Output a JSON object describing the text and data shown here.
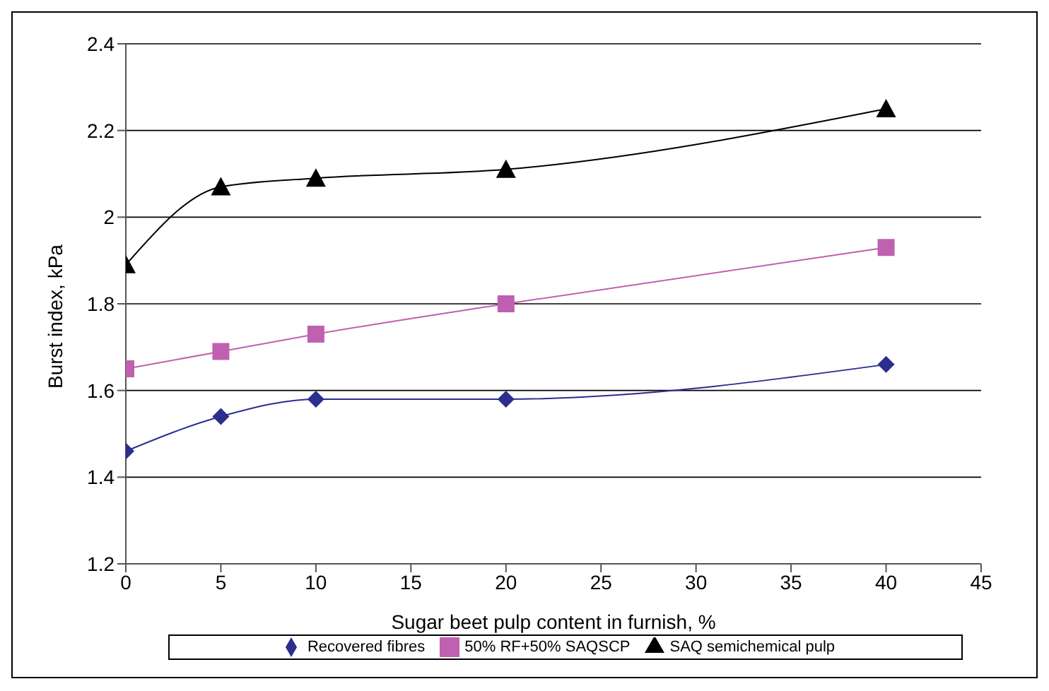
{
  "chart_data": {
    "type": "line",
    "xlabel": "Sugar beet pulp content in furnish, %",
    "ylabel": "Burst index, kPa",
    "x": [
      0,
      5,
      10,
      20,
      40
    ],
    "series": [
      {
        "name": "Recovered fibres",
        "color": "#2b2d8f",
        "marker": "diamond",
        "values": [
          1.46,
          1.54,
          1.58,
          1.58,
          1.66
        ]
      },
      {
        "name": "50% RF+50% SAQSCP",
        "color": "#c060b0",
        "marker": "square",
        "values": [
          1.65,
          1.69,
          1.73,
          1.8,
          1.93
        ]
      },
      {
        "name": "SAQ semichemical pulp",
        "color": "#000000",
        "marker": "triangle",
        "values": [
          1.89,
          2.07,
          2.09,
          2.11,
          2.25
        ]
      }
    ],
    "xlim": [
      0,
      45
    ],
    "xticks": [
      0,
      5,
      10,
      15,
      20,
      25,
      30,
      35,
      40,
      45
    ],
    "ylim": [
      1.2,
      2.4
    ],
    "yticks": [
      1.2,
      1.4,
      1.6,
      1.8,
      2,
      2.2,
      2.4
    ],
    "grid": "y",
    "legend": "bottom",
    "line_style": "solid"
  }
}
